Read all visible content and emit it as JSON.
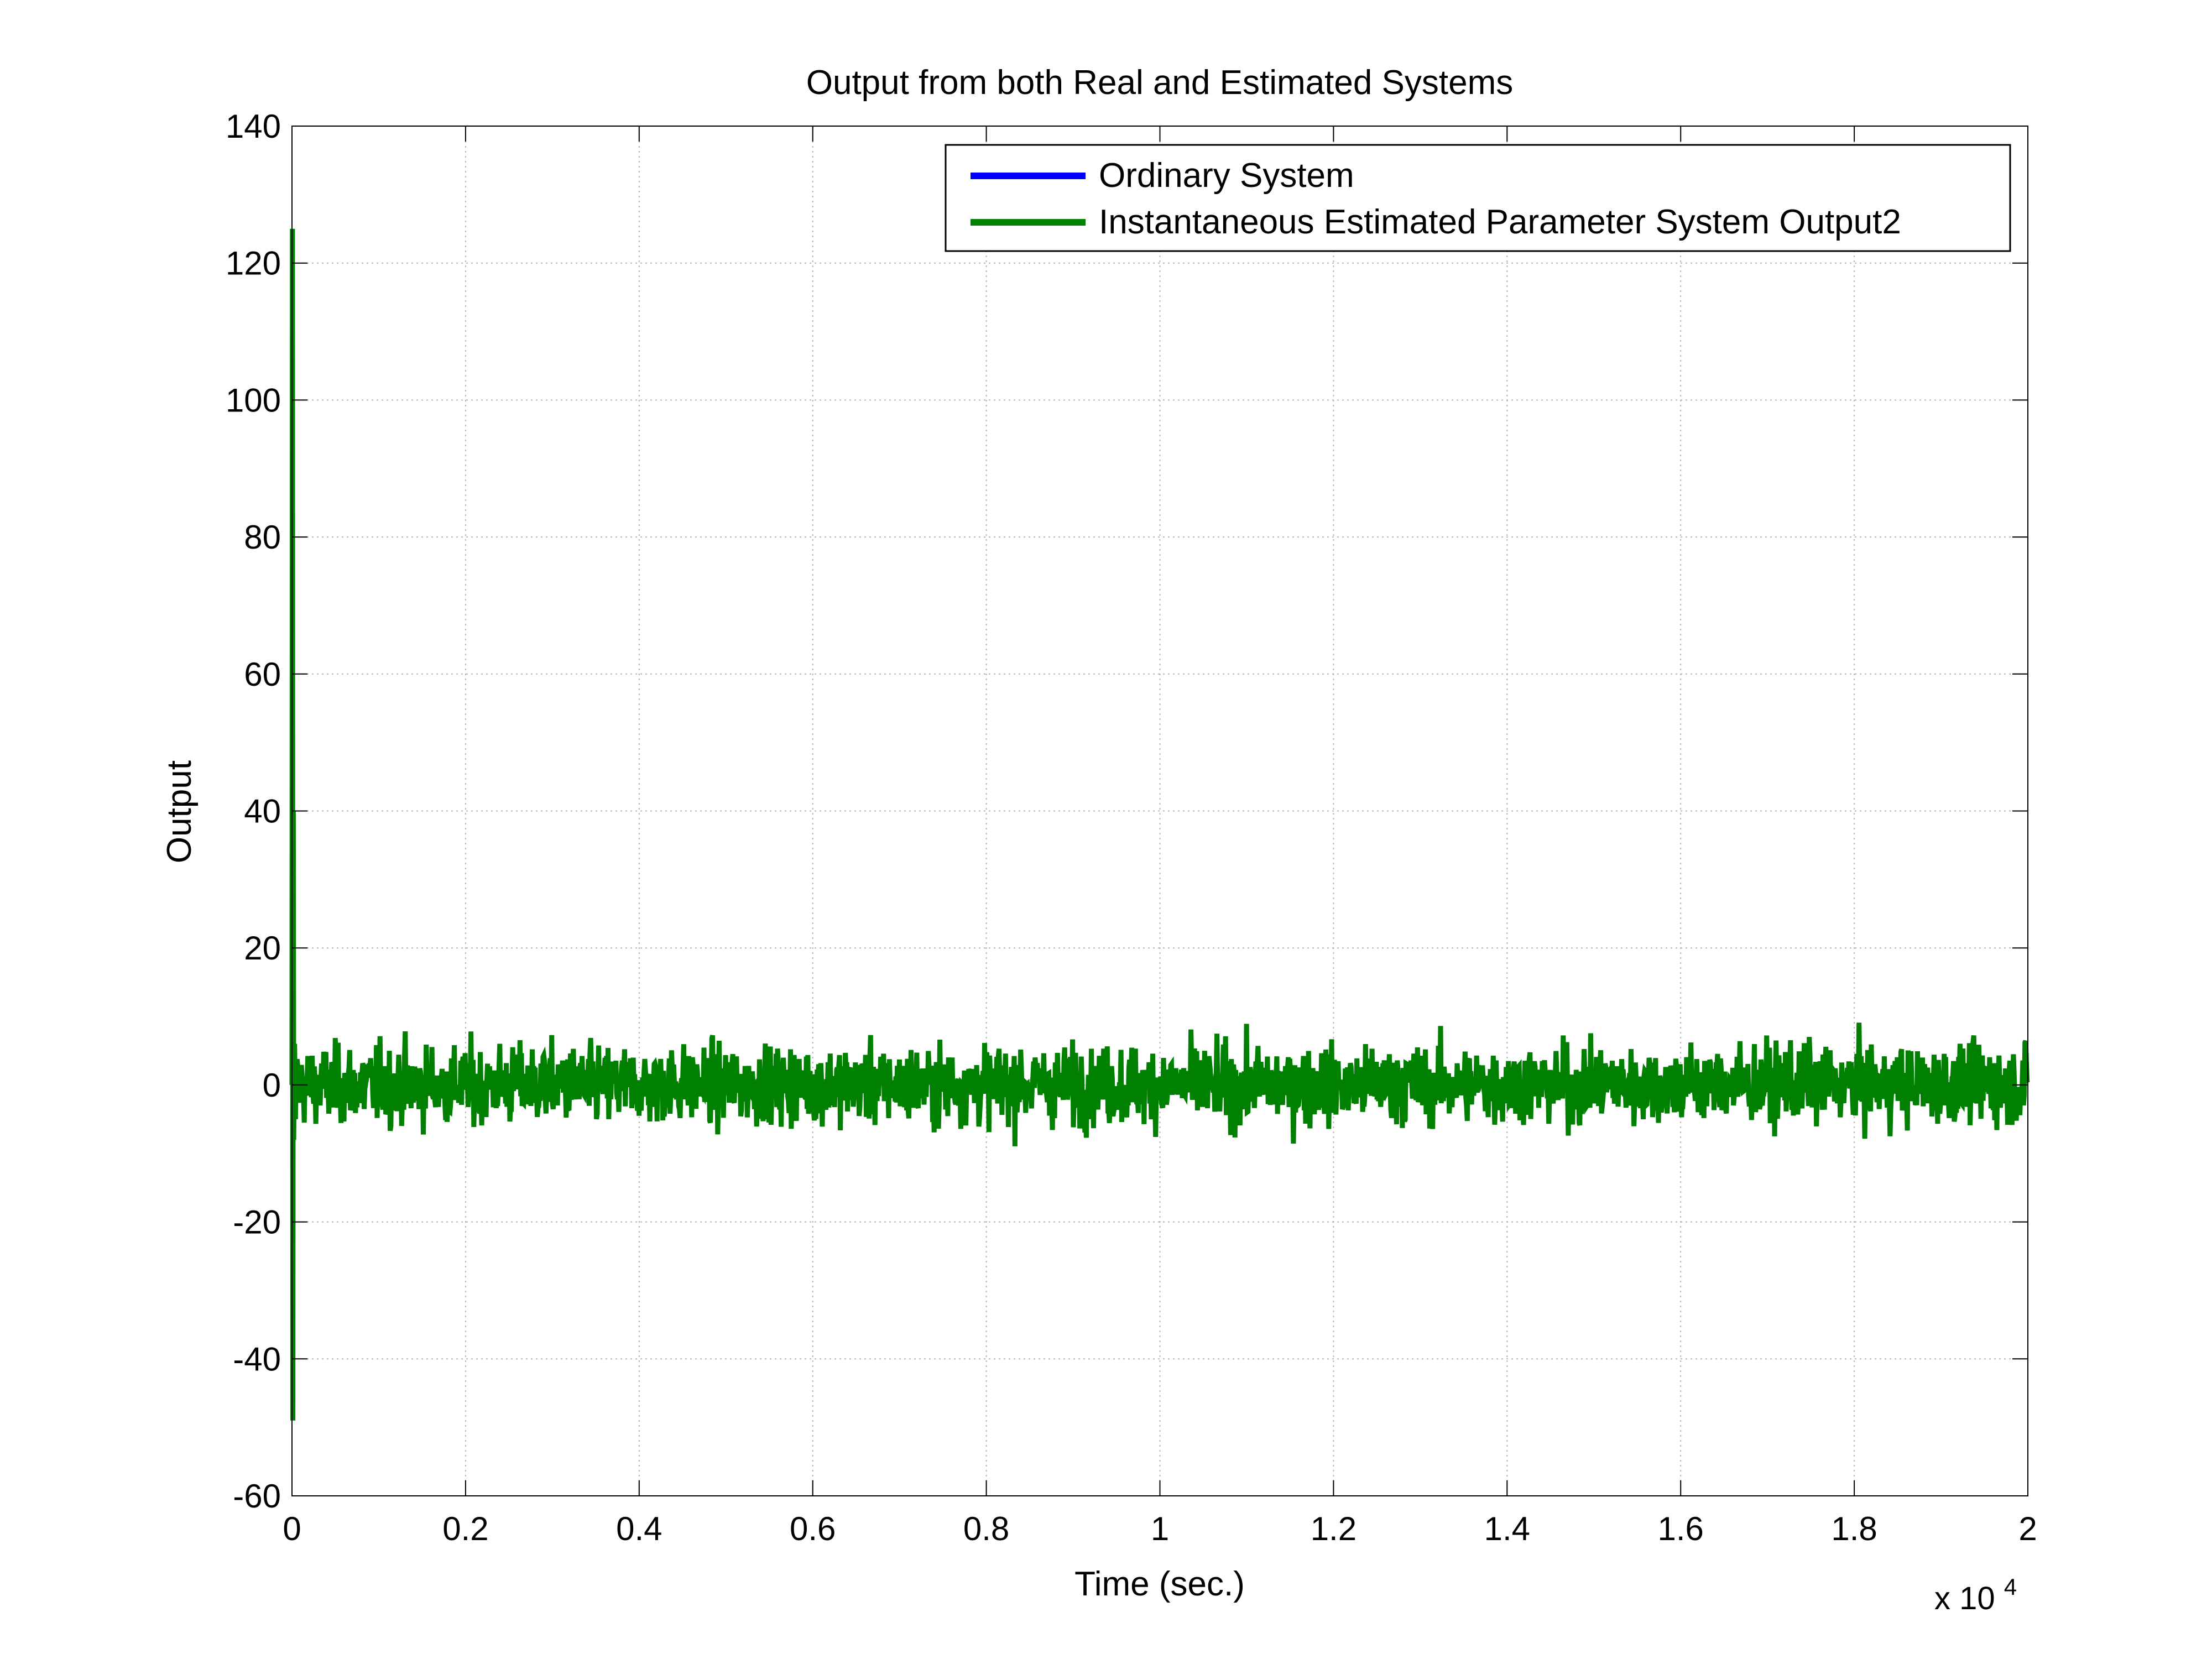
{
  "chart_data": {
    "type": "line",
    "title": "Output from both Real and Estimated Systems",
    "xlabel": "Time (sec.)",
    "ylabel": "Output",
    "x_multiplier_label": "x 10",
    "x_multiplier_exponent": "4",
    "xlim": [
      0,
      2
    ],
    "ylim": [
      -60,
      140
    ],
    "x_ticks": [
      0,
      0.2,
      0.4,
      0.6,
      0.8,
      1,
      1.2,
      1.4,
      1.6,
      1.8,
      2
    ],
    "x_tick_labels": [
      "0",
      "0.2",
      "0.4",
      "0.6",
      "0.8",
      "1",
      "1.2",
      "1.4",
      "1.6",
      "1.8",
      "2"
    ],
    "y_ticks": [
      -60,
      -40,
      -20,
      0,
      20,
      40,
      60,
      80,
      100,
      120,
      140
    ],
    "y_tick_labels": [
      "-60",
      "-40",
      "-20",
      "0",
      "20",
      "40",
      "60",
      "80",
      "100",
      "120",
      "140"
    ],
    "grid": true,
    "legend_position": "top-right",
    "series": [
      {
        "name": "Ordinary System",
        "color": "#0000ff",
        "x": [],
        "y": []
      },
      {
        "name": "Instantaneous Estimated Parameter System Output2",
        "color": "#008000",
        "x": [
          0,
          0.0005,
          0.001,
          0.0015,
          0.002,
          0.003,
          0.004,
          0.005
        ],
        "y": [
          0,
          125,
          -49,
          40,
          -8,
          6,
          -5,
          3
        ],
        "noise_band": {
          "x_start": 0.005,
          "x_end": 2.0,
          "typical_amplitude": 5,
          "max": 10,
          "min": -9
        }
      }
    ]
  }
}
